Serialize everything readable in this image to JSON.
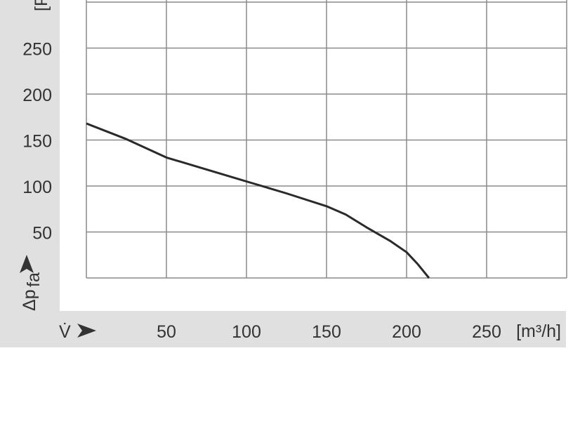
{
  "chart_data": {
    "type": "line",
    "xlabel": "V̇",
    "ylabel": "Δp",
    "ylabel_subscript": "fa",
    "xunit": "[m³/h]",
    "yunit": "[Pa]",
    "xlim": [
      0,
      300
    ],
    "ylim": [
      0,
      300
    ],
    "xticks": [
      50,
      100,
      150,
      200,
      250
    ],
    "yticks": [
      50,
      100,
      150,
      200,
      250
    ],
    "grid": true,
    "series": [
      {
        "x": [
          0,
          25,
          50,
          75,
          100,
          125,
          150,
          162,
          175,
          190,
          200,
          207,
          214
        ],
        "y": [
          168,
          151,
          131,
          118,
          105,
          92,
          78,
          69,
          55,
          40,
          28,
          15,
          0
        ]
      }
    ],
    "colors": {
      "line": "#2a2a2a",
      "grid": "#8a8a8a",
      "band": "#e0e0e0",
      "text": "#333333"
    }
  }
}
